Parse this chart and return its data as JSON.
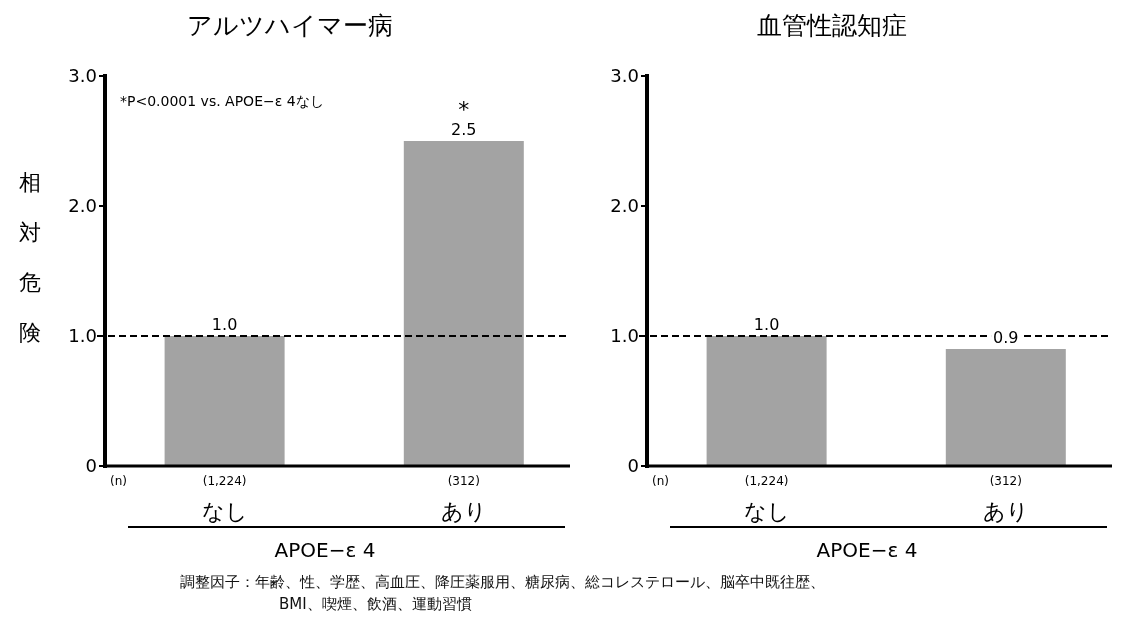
{
  "chart_data": [
    {
      "type": "bar",
      "title": "アルツハイマー病",
      "ylabel": "相対危険",
      "xlabel": "APOE−ε 4",
      "categories": [
        "なし",
        "あり"
      ],
      "values": [
        1.0,
        2.5
      ],
      "value_labels": [
        "1.0",
        "2.5"
      ],
      "color": "#a3a3a3",
      "ylim": [
        0,
        3
      ],
      "yticks": [
        0,
        {
          "value": 1,
          "label": "1.0"
        },
        {
          "value": 2,
          "label": "2.0"
        },
        {
          "value": 3,
          "label": "3.0"
        }
      ],
      "ref_lines": [
        {
          "axis": "y",
          "value": 1,
          "line_style": "dashed",
          "color": "#000000"
        }
      ],
      "annotations": [
        "(n)",
        "(1,224)",
        "(312)",
        "*P<0.0001 vs. APOE−ε 4なし",
        "調整因子：年齢、性、学歴、高血圧、降圧薬服用、糖尿病、総コレステロール、脳卒中既往歴、BMI、喫煙、飲酒、運動習慣",
        {
          "text": "*",
          "x": "あり",
          "y": 2.5
        }
      ]
    },
    {
      "type": "bar",
      "title": "血管性認知症",
      "xlabel": "APOE−ε 4",
      "categories": [
        "なし",
        "あり"
      ],
      "values": [
        1.0,
        0.9
      ],
      "value_labels": [
        "1.0",
        "0.9"
      ],
      "color": "#a3a3a3",
      "ylim": [
        0,
        3
      ],
      "yticks": [
        0,
        {
          "value": 1,
          "label": "1.0"
        },
        {
          "value": 2,
          "label": "2.0"
        },
        {
          "value": 3,
          "label": "3.0"
        }
      ],
      "ref_lines": [
        {
          "axis": "y",
          "value": 1,
          "line_style": "dashed",
          "color": "#000000"
        }
      ],
      "annotations": [
        "(n)",
        "(1,224)",
        "(312)"
      ]
    }
  ]
}
